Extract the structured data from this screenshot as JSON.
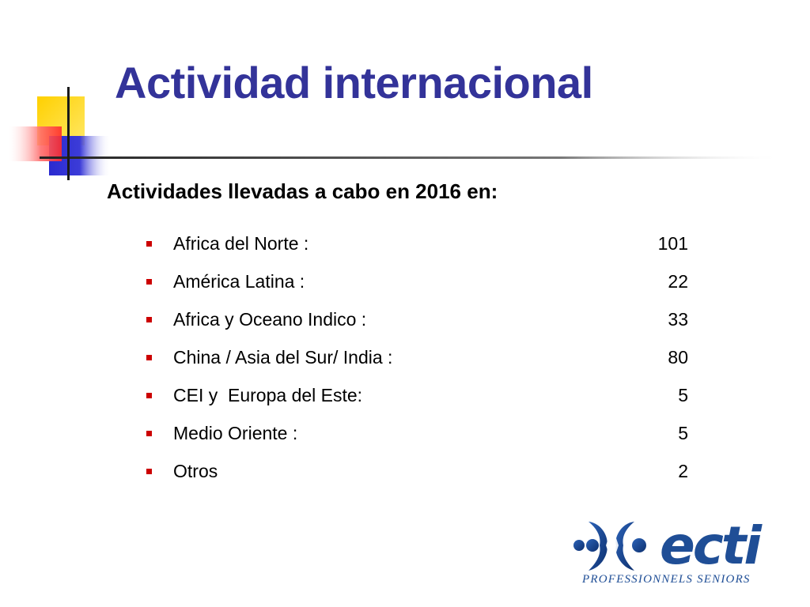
{
  "slide": {
    "title": "Actividad internacional",
    "subtitle": "Actividades llevadas a cabo en 2016 en:",
    "items": [
      {
        "label": "Africa del Norte :",
        "value": "101"
      },
      {
        "label": "América Latina :",
        "value": "22"
      },
      {
        "label": "Africa y Oceano Indico :",
        "value": "33"
      },
      {
        "label": "China / Asia del Sur/ India :",
        "value": "80"
      },
      {
        "label": "CEI y  Europa del Este:",
        "value": "5"
      },
      {
        "label": "Medio Oriente :",
        "value": "5"
      },
      {
        "label": "Otros",
        "value": "2"
      }
    ]
  },
  "logo": {
    "wordmark": "ecti",
    "tagline": "PROFESSIONNELS SENIORS"
  },
  "colors": {
    "title": "#333399",
    "bullet": "#cc0000",
    "logo": "#1f4e96",
    "deco_yellow": "#ffd700",
    "deco_blue": "#3333cc",
    "deco_red": "#ff3333"
  }
}
